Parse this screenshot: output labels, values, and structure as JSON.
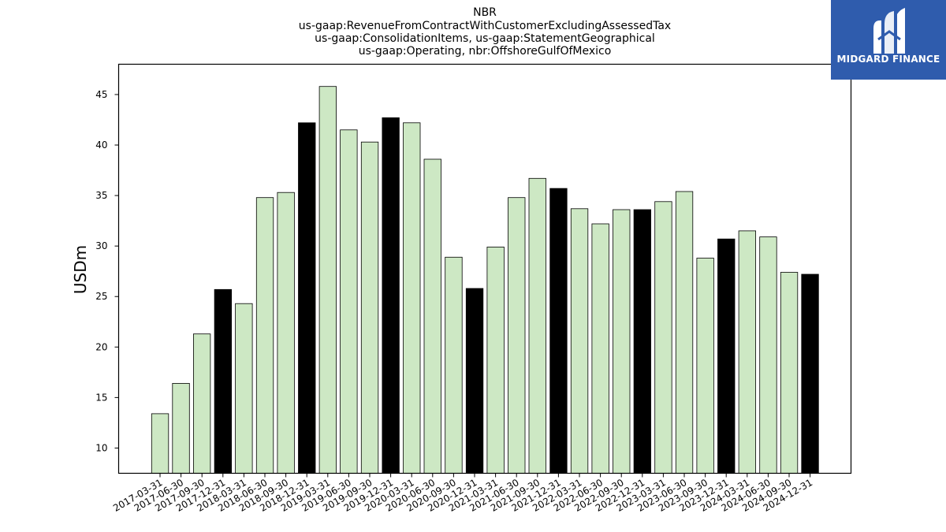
{
  "chart_data": {
    "type": "bar",
    "title": [
      "NBR",
      "us-gaap:RevenueFromContractWithCustomerExcludingAssessedTax",
      "us-gaap:ConsolidationItems, us-gaap:StatementGeographical",
      "us-gaap:Operating, nbr:OffshoreGulfOfMexico"
    ],
    "ylabel": "USDm",
    "xlabel": "",
    "ylim": [
      7.5,
      48
    ],
    "yticks": [
      10,
      15,
      20,
      25,
      30,
      35,
      40,
      45
    ],
    "categories": [
      "2017-03-31",
      "2017-06-30",
      "2017-09-30",
      "2017-12-31",
      "2018-03-31",
      "2018-06-30",
      "2018-09-30",
      "2018-12-31",
      "2019-03-31",
      "2019-06-30",
      "2019-09-30",
      "2019-12-31",
      "2020-03-31",
      "2020-06-30",
      "2020-09-30",
      "2020-12-31",
      "2021-03-31",
      "2021-06-30",
      "2021-09-30",
      "2021-12-31",
      "2022-03-31",
      "2022-06-30",
      "2022-09-30",
      "2022-12-31",
      "2023-03-31",
      "2023-06-30",
      "2023-09-30",
      "2023-12-31",
      "2024-03-31",
      "2024-06-30",
      "2024-09-30",
      "2024-12-31"
    ],
    "values": [
      13.4,
      16.4,
      21.3,
      25.7,
      24.3,
      34.8,
      35.3,
      42.2,
      45.8,
      41.5,
      40.3,
      42.7,
      42.2,
      38.6,
      28.9,
      25.8,
      29.9,
      34.8,
      36.7,
      35.7,
      33.7,
      32.2,
      33.6,
      33.6,
      34.4,
      35.4,
      28.8,
      30.7,
      31.5,
      30.9,
      27.4,
      27.2
    ],
    "colors": {
      "quarter": "#cde8c4",
      "year_end": "#000000",
      "edge": "#000000"
    },
    "grid": false,
    "legend": "none"
  },
  "logo": {
    "text": "MIDGARD FINANCE",
    "background": "#2f5cad",
    "icon": "midgard-logo-icon"
  }
}
